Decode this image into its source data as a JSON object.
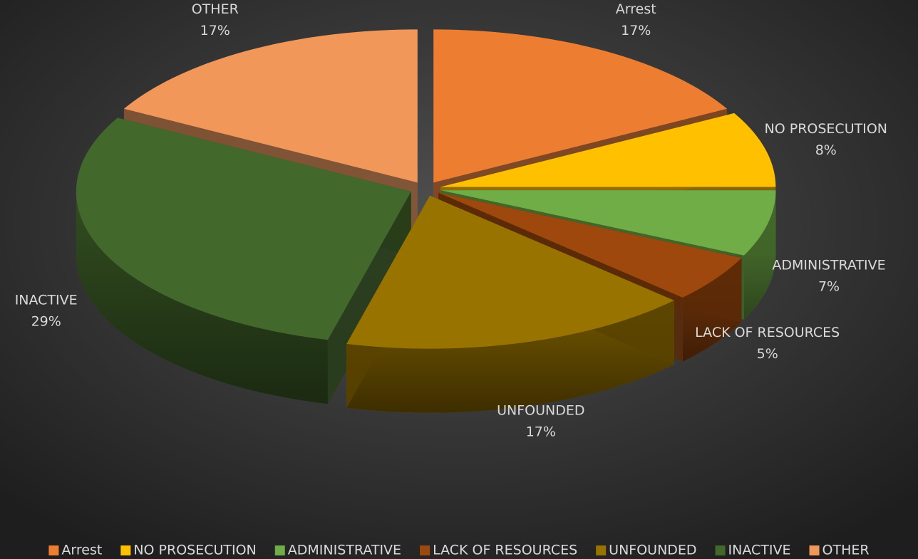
{
  "chart_data": {
    "type": "pie",
    "categories": [
      "Arrest",
      "NO PROSECUTION",
      "ADMINISTRATIVE",
      "LACK OF RESOURCES",
      "UNFOUNDED",
      "INACTIVE",
      "OTHER"
    ],
    "values": [
      17,
      8,
      7,
      5,
      17,
      29,
      17
    ],
    "value_labels": [
      "17%",
      "8%",
      "7%",
      "5%",
      "17%",
      "29%",
      "17%"
    ],
    "colors": [
      "#ed7d31",
      "#ffc000",
      "#70ad47",
      "#9e480e",
      "#997300",
      "#43682b",
      "#f1975a"
    ],
    "legend": "bottom"
  }
}
